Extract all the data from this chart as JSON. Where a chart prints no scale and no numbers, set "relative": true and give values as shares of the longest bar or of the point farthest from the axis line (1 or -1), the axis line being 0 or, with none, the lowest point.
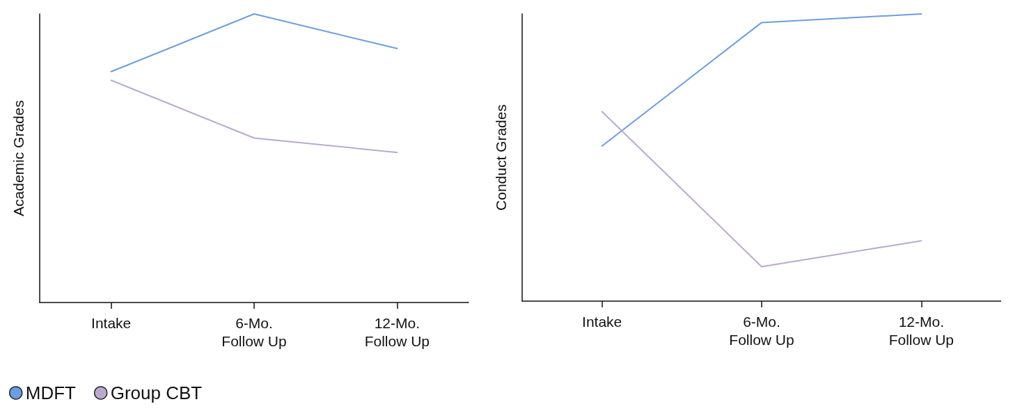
{
  "chart_data": [
    {
      "type": "line",
      "ylabel": "Academic Grades",
      "categories": [
        "Intake",
        "6-Mo.\nFollow Up",
        "12-Mo.\nFollow Up"
      ],
      "relative": true,
      "legend": "bottom left",
      "marker": "none",
      "line_style": "solid",
      "grid": false,
      "series": [
        {
          "name": "MDFT",
          "color": "#6a9ee0",
          "values": [
            0.8,
            1,
            0.88
          ]
        },
        {
          "name": "Group CBT",
          "color": "#b9a9cf",
          "values": [
            0.77,
            0.57,
            0.52
          ]
        }
      ]
    },
    {
      "type": "line",
      "ylabel": "Conduct Grades",
      "categories": [
        "Intake",
        "6-Mo.\nFollow Up",
        "12-Mo.\nFollow Up"
      ],
      "relative": true,
      "marker": "none",
      "line_style": "solid",
      "grid": false,
      "series": [
        {
          "color": "#6a9ee0",
          "values": [
            0.54,
            0.97,
            1
          ]
        },
        {
          "color": "#b9a9cf",
          "values": [
            0.66,
            0.12,
            0.21
          ]
        }
      ]
    }
  ]
}
